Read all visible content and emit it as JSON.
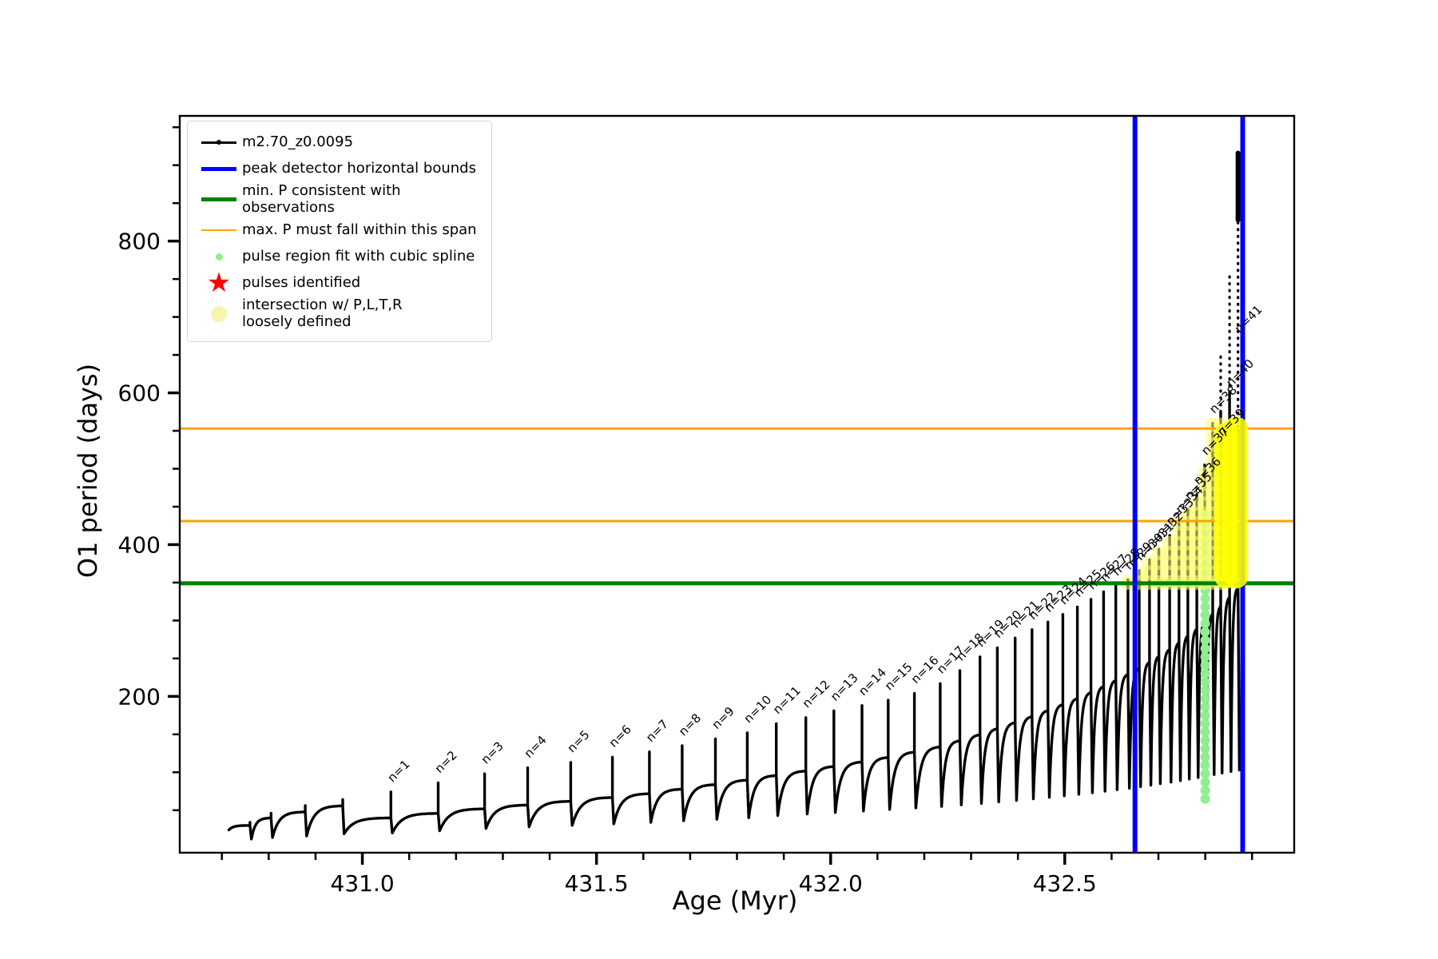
{
  "figure_background": "#ffffff",
  "legend": {
    "items": [
      {
        "marker": "line-dot",
        "color": "#000000",
        "label": "m2.70_z0.0095"
      },
      {
        "marker": "thick-line",
        "color": "#0000ff",
        "label": "peak detector horizontal bounds"
      },
      {
        "marker": "thick-line",
        "color": "#008000",
        "label": "min. P consistent with observations"
      },
      {
        "marker": "thin-line",
        "color": "#ffa500",
        "label": "max. P must fall within this span"
      },
      {
        "marker": "small-dot",
        "color": "#90ee90",
        "label": "pulse region fit with cubic spline"
      },
      {
        "marker": "star",
        "color": "#ff0000",
        "label": "pulses identified"
      },
      {
        "marker": "big-dot",
        "color": "#f5f5b0",
        "label": "intersection w/ P,L,T,R\nloosely defined"
      }
    ]
  },
  "chart_data": {
    "type": "line",
    "series_name": "m2.70_z0.0095",
    "title": "",
    "xlabel": "Age (Myr)",
    "ylabel": "O1 period (days)",
    "xlim": [
      430.61,
      432.99
    ],
    "ylim": [
      -6,
      965
    ],
    "x_major_ticks": [
      431.0,
      431.5,
      432.0,
      432.5
    ],
    "x_major_tick_labels": [
      "431.0",
      "431.5",
      "432.0",
      "432.5"
    ],
    "x_minor_tick_step": 0.1,
    "y_major_ticks": [
      200,
      400,
      600,
      800
    ],
    "y_major_tick_labels": [
      "200",
      "400",
      "600",
      "800"
    ],
    "y_minor_tick_step": 50,
    "grid": false,
    "legend_position": "upper left",
    "vlines": {
      "label": "peak detector horizontal bounds",
      "color": "#0000ff",
      "ages": [
        432.65,
        432.88
      ],
      "width": 6
    },
    "hline_green": {
      "label": "min. P consistent with observations",
      "color": "#008000",
      "value": 349,
      "width": 5
    },
    "hlines_orange": {
      "label": "max. P must fall within this span",
      "color": "#ffa500",
      "values": [
        431,
        553
      ],
      "width": 3
    },
    "pre_pulses": [
      {
        "age": 430.76,
        "top": 34,
        "base": 30,
        "dip": 12
      },
      {
        "age": 430.805,
        "top": 46,
        "base": 40,
        "dip": 14
      },
      {
        "age": 430.878,
        "top": 56,
        "base": 48,
        "dip": 16
      },
      {
        "age": 430.958,
        "top": 64,
        "base": 56,
        "dip": 19
      }
    ],
    "curve_start": {
      "age": 430.715,
      "value": 24
    },
    "pulses": [
      {
        "n": 1,
        "age": 431.061,
        "top": 74,
        "base": 40,
        "dip": 20
      },
      {
        "n": 2,
        "age": 431.162,
        "top": 86,
        "base": 46,
        "dip": 23
      },
      {
        "n": 3,
        "age": 431.261,
        "top": 98,
        "base": 52,
        "dip": 26
      },
      {
        "n": 4,
        "age": 431.353,
        "top": 106,
        "base": 57,
        "dip": 28
      },
      {
        "n": 5,
        "age": 431.445,
        "top": 113,
        "base": 62,
        "dip": 30
      },
      {
        "n": 6,
        "age": 431.534,
        "top": 120,
        "base": 67,
        "dip": 32
      },
      {
        "n": 7,
        "age": 431.613,
        "top": 127,
        "base": 72,
        "dip": 34
      },
      {
        "n": 8,
        "age": 431.683,
        "top": 135,
        "base": 78,
        "dip": 36
      },
      {
        "n": 9,
        "age": 431.754,
        "top": 144,
        "base": 84,
        "dip": 38
      },
      {
        "n": 10,
        "age": 431.822,
        "top": 152,
        "base": 90,
        "dip": 40
      },
      {
        "n": 11,
        "age": 431.884,
        "top": 164,
        "base": 96,
        "dip": 43
      },
      {
        "n": 12,
        "age": 431.947,
        "top": 172,
        "base": 102,
        "dip": 45
      },
      {
        "n": 13,
        "age": 432.007,
        "top": 181,
        "base": 108,
        "dip": 47
      },
      {
        "n": 14,
        "age": 432.067,
        "top": 188,
        "base": 114,
        "dip": 49
      },
      {
        "n": 15,
        "age": 432.123,
        "top": 195,
        "base": 120,
        "dip": 51
      },
      {
        "n": 16,
        "age": 432.179,
        "top": 204,
        "base": 127,
        "dip": 53
      },
      {
        "n": 17,
        "age": 432.234,
        "top": 217,
        "base": 134,
        "dip": 55
      },
      {
        "n": 18,
        "age": 432.276,
        "top": 234,
        "base": 142,
        "dip": 57
      },
      {
        "n": 19,
        "age": 432.319,
        "top": 252,
        "base": 150,
        "dip": 59
      },
      {
        "n": 20,
        "age": 432.356,
        "top": 264,
        "base": 158,
        "dip": 61
      },
      {
        "n": 21,
        "age": 432.394,
        "top": 277,
        "base": 166,
        "dip": 63
      },
      {
        "n": 22,
        "age": 432.43,
        "top": 288,
        "base": 174,
        "dip": 65
      },
      {
        "n": 23,
        "age": 432.464,
        "top": 298,
        "base": 182,
        "dip": 67
      },
      {
        "n": 24,
        "age": 432.496,
        "top": 308,
        "base": 190,
        "dip": 69
      },
      {
        "n": 25,
        "age": 432.527,
        "top": 318,
        "base": 198,
        "dip": 71
      },
      {
        "n": 26,
        "age": 432.556,
        "top": 328,
        "base": 206,
        "dip": 73
      },
      {
        "n": 27,
        "age": 432.583,
        "top": 338,
        "base": 214,
        "dip": 75
      },
      {
        "n": 28,
        "age": 432.609,
        "top": 346,
        "base": 222,
        "dip": 77
      },
      {
        "n": 29,
        "age": 432.635,
        "top": 354,
        "base": 230,
        "dip": 79
      },
      {
        "n": 30,
        "age": 432.659,
        "top": 366,
        "base": 238,
        "dip": 81
      },
      {
        "n": 31,
        "age": 432.681,
        "top": 380,
        "base": 246,
        "dip": 83
      },
      {
        "n": 32,
        "age": 432.701,
        "top": 394,
        "base": 254,
        "dip": 85
      },
      {
        "n": 33,
        "age": 432.724,
        "top": 412,
        "base": 263,
        "dip": 87
      },
      {
        "n": 34,
        "age": 432.744,
        "top": 428,
        "base": 272,
        "dip": 89
      },
      {
        "n": 35,
        "age": 432.763,
        "top": 446,
        "base": 281,
        "dip": 91
      },
      {
        "n": 36,
        "age": 432.782,
        "top": 466,
        "base": 290,
        "dip": 93
      },
      {
        "n": 37,
        "age": 432.799,
        "top": 505,
        "base": 300,
        "dip": 95
      },
      {
        "n": 38,
        "age": 432.816,
        "top": 560,
        "base": 310,
        "dip": 97
      },
      {
        "n": 39,
        "age": 432.833,
        "top": 648,
        "base": 320,
        "dip": 99,
        "dash_from": 575,
        "label_v": 540
      },
      {
        "n": 40,
        "age": 432.852,
        "top": 758,
        "base": 332,
        "dip": 101,
        "dash_from": 600,
        "label_v": 605
      },
      {
        "n": 41,
        "age": 432.87,
        "top": 916,
        "base": 345,
        "dip": 103,
        "dash_from": 555,
        "solid_top": [
          828,
          916
        ],
        "label_v": 676
      }
    ],
    "pulse_label_prefix": "n=",
    "decorations": {
      "yellow_chain": {
        "color": "rgba(255,255,110,0.55)",
        "from_value": 350,
        "max_value": 565,
        "radius": 9,
        "pulses_from_n": 29,
        "pulses_to_n": 39
      },
      "yellow_band": {
        "color": "rgba(255,255,0,0.88)",
        "strokes": [
          {
            "age": 432.845,
            "v0": 358,
            "v1": 545,
            "width": 30
          },
          {
            "age": 432.866,
            "v0": 358,
            "v1": 553,
            "width": 30
          }
        ]
      },
      "spline_column": {
        "color": "#90ee90",
        "age": 432.8,
        "v0": 65,
        "v1": 440,
        "step": 11,
        "radius": 6
      },
      "spline_row": {
        "color": "#8ee08e",
        "value": 349,
        "age0": 432.695,
        "age1": 432.884,
        "step": 0.0045,
        "radius": 5
      }
    },
    "colors": {
      "series": "#000000",
      "peak_bounds": "#0000ff",
      "min_p": "#008000",
      "max_p": "#ffa500",
      "spline": "#90ee90",
      "pulses_identified": "#ff0000",
      "intersection": "#ffff00"
    }
  }
}
